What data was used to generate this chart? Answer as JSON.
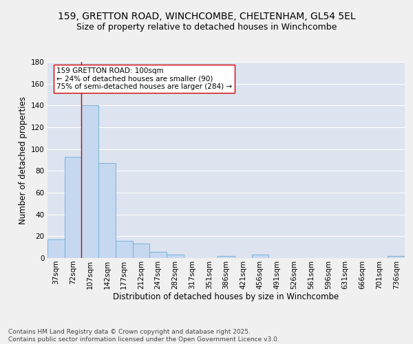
{
  "title_line1": "159, GRETTON ROAD, WINCHCOMBE, CHELTENHAM, GL54 5EL",
  "title_line2": "Size of property relative to detached houses in Winchcombe",
  "xlabel": "Distribution of detached houses by size in Winchcombe",
  "ylabel": "Number of detached properties",
  "categories": [
    "37sqm",
    "72sqm",
    "107sqm",
    "142sqm",
    "177sqm",
    "212sqm",
    "247sqm",
    "282sqm",
    "317sqm",
    "351sqm",
    "386sqm",
    "421sqm",
    "456sqm",
    "491sqm",
    "526sqm",
    "561sqm",
    "596sqm",
    "631sqm",
    "666sqm",
    "701sqm",
    "736sqm"
  ],
  "values": [
    17,
    93,
    140,
    87,
    16,
    13,
    6,
    3,
    0,
    0,
    2,
    0,
    3,
    0,
    0,
    0,
    0,
    0,
    0,
    0,
    2
  ],
  "bar_color": "#c5d8f0",
  "bar_edge_color": "#6aaed6",
  "vline_color": "#cc0000",
  "annotation_box_color": "#cc0000",
  "annotation_box_text": "159 GRETTON ROAD: 100sqm\n← 24% of detached houses are smaller (90)\n75% of semi-detached houses are larger (284) →",
  "ylim": [
    0,
    180
  ],
  "yticks": [
    0,
    20,
    40,
    60,
    80,
    100,
    120,
    140,
    160,
    180
  ],
  "background_color": "#dde3ef",
  "fig_background_color": "#f0f0f0",
  "grid_color": "#ffffff",
  "footer_text": "Contains HM Land Registry data © Crown copyright and database right 2025.\nContains public sector information licensed under the Open Government Licence v3.0.",
  "title_fontsize": 10,
  "subtitle_fontsize": 9,
  "axis_label_fontsize": 8.5,
  "tick_fontsize": 7.5,
  "annotation_fontsize": 7.5,
  "footer_fontsize": 6.5
}
